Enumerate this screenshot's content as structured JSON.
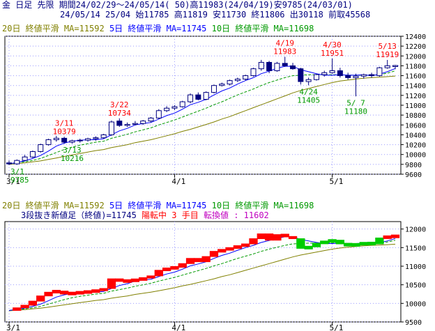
{
  "header": {
    "line1": "金 日足 先限 期間24/02/29～24/05/14( 50)高11983(24/04/19)安9785(24/03/01)",
    "line2": "24/05/14 25/04 始11785 高11819 安11730 終11806 出30118 前取45568"
  },
  "chart_data": [
    {
      "type": "candlestick",
      "legend": {
        "ma20": "20日 終値平滑 MA=11592",
        "ma5": "5日 終値平滑 MA=11745",
        "ma10": "10日 終値平滑 MA=11698"
      },
      "x_ticks": [
        "3/1",
        "4/1",
        "5/1"
      ],
      "y_ticks": [
        9600,
        9800,
        10000,
        10200,
        10400,
        10600,
        10800,
        11000,
        11200,
        11400,
        11600,
        11800,
        12000,
        12200,
        12400
      ],
      "ylim": [
        9600,
        12400
      ],
      "annotations": [
        {
          "date": "3/1",
          "value": "9785",
          "kind": "low"
        },
        {
          "date": "3/11",
          "value": "10379",
          "kind": "high"
        },
        {
          "date": "3/13",
          "value": "10216",
          "kind": "low"
        },
        {
          "date": "3/22",
          "value": "10734",
          "kind": "high"
        },
        {
          "date": "4/19",
          "value": "11983",
          "kind": "high"
        },
        {
          "date": "4/24",
          "value": "11405",
          "kind": "low"
        },
        {
          "date": "4/30",
          "value": "11951",
          "kind": "high"
        },
        {
          "date": "5/ 7",
          "value": "11180",
          "kind": "low"
        },
        {
          "date": "5/13",
          "value": "11919",
          "kind": "high"
        }
      ],
      "candles": [
        {
          "o": 9830,
          "h": 9880,
          "l": 9785,
          "c": 9810
        },
        {
          "o": 9810,
          "h": 9900,
          "l": 9790,
          "c": 9880
        },
        {
          "o": 9880,
          "h": 9990,
          "l": 9860,
          "c": 9950
        },
        {
          "o": 9950,
          "h": 10080,
          "l": 9930,
          "c": 10060
        },
        {
          "o": 10060,
          "h": 10220,
          "l": 10040,
          "c": 10200
        },
        {
          "o": 10200,
          "h": 10320,
          "l": 10180,
          "c": 10300
        },
        {
          "o": 10300,
          "h": 10379,
          "l": 10260,
          "c": 10330
        },
        {
          "o": 10330,
          "h": 10360,
          "l": 10216,
          "c": 10250
        },
        {
          "o": 10250,
          "h": 10300,
          "l": 10220,
          "c": 10280
        },
        {
          "o": 10280,
          "h": 10320,
          "l": 10240,
          "c": 10290
        },
        {
          "o": 10290,
          "h": 10340,
          "l": 10260,
          "c": 10320
        },
        {
          "o": 10320,
          "h": 10370,
          "l": 10280,
          "c": 10340
        },
        {
          "o": 10340,
          "h": 10420,
          "l": 10320,
          "c": 10400
        },
        {
          "o": 10400,
          "h": 10690,
          "l": 10380,
          "c": 10660
        },
        {
          "o": 10680,
          "h": 10734,
          "l": 10560,
          "c": 10590
        },
        {
          "o": 10590,
          "h": 10650,
          "l": 10560,
          "c": 10610
        },
        {
          "o": 10610,
          "h": 10680,
          "l": 10590,
          "c": 10630
        },
        {
          "o": 10630,
          "h": 10700,
          "l": 10600,
          "c": 10680
        },
        {
          "o": 10680,
          "h": 10760,
          "l": 10650,
          "c": 10740
        },
        {
          "o": 10740,
          "h": 10920,
          "l": 10720,
          "c": 10890
        },
        {
          "o": 10890,
          "h": 10980,
          "l": 10860,
          "c": 10940
        },
        {
          "o": 10940,
          "h": 11000,
          "l": 10900,
          "c": 10970
        },
        {
          "o": 10970,
          "h": 11090,
          "l": 10950,
          "c": 11070
        },
        {
          "o": 11070,
          "h": 11240,
          "l": 11040,
          "c": 11210
        },
        {
          "o": 11210,
          "h": 11260,
          "l": 11100,
          "c": 11120
        },
        {
          "o": 11120,
          "h": 11280,
          "l": 11100,
          "c": 11260
        },
        {
          "o": 11260,
          "h": 11420,
          "l": 11240,
          "c": 11400
        },
        {
          "o": 11400,
          "h": 11460,
          "l": 11380,
          "c": 11430
        },
        {
          "o": 11430,
          "h": 11520,
          "l": 11400,
          "c": 11500
        },
        {
          "o": 11500,
          "h": 11560,
          "l": 11470,
          "c": 11530
        },
        {
          "o": 11530,
          "h": 11620,
          "l": 11500,
          "c": 11600
        },
        {
          "o": 11600,
          "h": 11760,
          "l": 11580,
          "c": 11740
        },
        {
          "o": 11740,
          "h": 11920,
          "l": 11700,
          "c": 11870
        },
        {
          "o": 11870,
          "h": 11900,
          "l": 11650,
          "c": 11700
        },
        {
          "o": 11700,
          "h": 11880,
          "l": 11680,
          "c": 11850
        },
        {
          "o": 11850,
          "h": 11983,
          "l": 11780,
          "c": 11800
        },
        {
          "o": 11800,
          "h": 11860,
          "l": 11720,
          "c": 11740
        },
        {
          "o": 11740,
          "h": 11760,
          "l": 11420,
          "c": 11480
        },
        {
          "o": 11480,
          "h": 11560,
          "l": 11405,
          "c": 11520
        },
        {
          "o": 11520,
          "h": 11640,
          "l": 11500,
          "c": 11620
        },
        {
          "o": 11620,
          "h": 11700,
          "l": 11580,
          "c": 11660
        },
        {
          "o": 11660,
          "h": 11951,
          "l": 11640,
          "c": 11700
        },
        {
          "o": 11700,
          "h": 11760,
          "l": 11560,
          "c": 11600
        },
        {
          "o": 11600,
          "h": 11660,
          "l": 11520,
          "c": 11560
        },
        {
          "o": 11560,
          "h": 11640,
          "l": 11180,
          "c": 11590
        },
        {
          "o": 11590,
          "h": 11640,
          "l": 11540,
          "c": 11620
        },
        {
          "o": 11620,
          "h": 11660,
          "l": 11560,
          "c": 11600
        },
        {
          "o": 11600,
          "h": 11780,
          "l": 11580,
          "c": 11760
        },
        {
          "o": 11760,
          "h": 11919,
          "l": 11740,
          "c": 11800
        },
        {
          "o": 11785,
          "h": 11819,
          "l": 11730,
          "c": 11806
        }
      ],
      "ma5": [
        9810,
        9840,
        9870,
        9920,
        9980,
        10070,
        10170,
        10230,
        10270,
        10290,
        10300,
        10300,
        10320,
        10400,
        10480,
        10530,
        10600,
        10630,
        10650,
        10720,
        10790,
        10840,
        10920,
        11010,
        11060,
        11120,
        11210,
        11290,
        11350,
        11430,
        11500,
        11560,
        11640,
        11690,
        11750,
        11790,
        11790,
        11720,
        11680,
        11640,
        11610,
        11610,
        11620,
        11610,
        11610,
        11620,
        11600,
        11630,
        11680,
        11745
      ],
      "ma10": [
        9810,
        9830,
        9850,
        9880,
        9920,
        9980,
        10040,
        10100,
        10150,
        10190,
        10220,
        10250,
        10270,
        10330,
        10370,
        10410,
        10460,
        10500,
        10540,
        10600,
        10650,
        10700,
        10760,
        10820,
        10880,
        10940,
        11010,
        11070,
        11140,
        11210,
        11270,
        11330,
        11400,
        11460,
        11510,
        11560,
        11600,
        11610,
        11620,
        11620,
        11620,
        11620,
        11620,
        11610,
        11610,
        11610,
        11610,
        11620,
        11650,
        11698
      ],
      "ma20": [
        9800,
        9815,
        9830,
        9850,
        9870,
        9900,
        9930,
        9960,
        9990,
        10020,
        10050,
        10080,
        10100,
        10140,
        10170,
        10200,
        10240,
        10270,
        10300,
        10340,
        10380,
        10420,
        10470,
        10510,
        10560,
        10610,
        10660,
        10720,
        10770,
        10830,
        10890,
        10950,
        11010,
        11070,
        11130,
        11190,
        11250,
        11300,
        11340,
        11380,
        11420,
        11460,
        11490,
        11510,
        11530,
        11550,
        11560,
        11570,
        11580,
        11592
      ]
    },
    {
      "type": "three-line-break",
      "legend": {
        "ma20": "20日 終値平滑 MA=11592",
        "ma5": "5日 終値平滑 MA=11745",
        "ma10": "10日 終値平滑 MA=11698"
      },
      "info": {
        "title": "3段抜き新値足（終値)=11745",
        "state": "陽転中",
        "count": "3 手目",
        "reversal": "転換値 : 11602"
      },
      "x_ticks": [
        "3/1",
        "4/1",
        "5/1"
      ],
      "y_ticks": [
        9500,
        10000,
        10500,
        11000,
        11500,
        12000
      ],
      "ylim": [
        9500,
        12200
      ]
    }
  ]
}
